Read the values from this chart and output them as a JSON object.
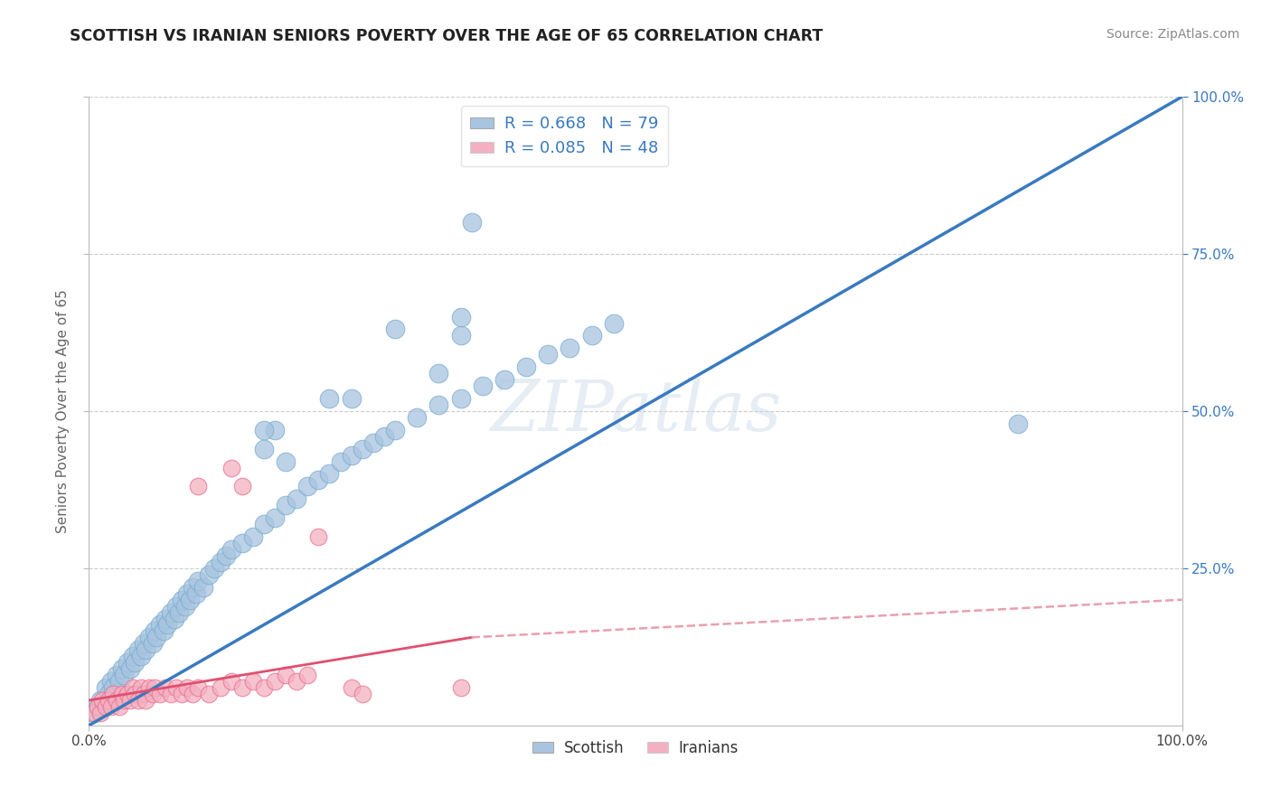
{
  "title": "SCOTTISH VS IRANIAN SENIORS POVERTY OVER THE AGE OF 65 CORRELATION CHART",
  "source": "Source: ZipAtlas.com",
  "ylabel": "Seniors Poverty Over the Age of 65",
  "xlim": [
    0.0,
    1.0
  ],
  "ylim": [
    0.0,
    1.0
  ],
  "watermark": "ZIPatlas",
  "scottish_line_color": "#3a7abf",
  "iranian_line_color": "#e05070",
  "iranian_line_dash_color": "#e8a0b0",
  "scatter_scottish_color": "#a8c4e0",
  "scatter_scottish_edge": "#7aaed0",
  "scatter_iranian_color": "#f4b0c0",
  "scatter_iranian_edge": "#e87090",
  "background_color": "#ffffff",
  "grid_color": "#cccccc",
  "scottish_scatter": [
    [
      0.005,
      0.02
    ],
    [
      0.008,
      0.03
    ],
    [
      0.01,
      0.04
    ],
    [
      0.012,
      0.03
    ],
    [
      0.015,
      0.06
    ],
    [
      0.018,
      0.05
    ],
    [
      0.02,
      0.07
    ],
    [
      0.022,
      0.06
    ],
    [
      0.025,
      0.08
    ],
    [
      0.028,
      0.07
    ],
    [
      0.03,
      0.09
    ],
    [
      0.032,
      0.08
    ],
    [
      0.035,
      0.1
    ],
    [
      0.038,
      0.09
    ],
    [
      0.04,
      0.11
    ],
    [
      0.042,
      0.1
    ],
    [
      0.045,
      0.12
    ],
    [
      0.048,
      0.11
    ],
    [
      0.05,
      0.13
    ],
    [
      0.052,
      0.12
    ],
    [
      0.055,
      0.14
    ],
    [
      0.058,
      0.13
    ],
    [
      0.06,
      0.15
    ],
    [
      0.062,
      0.14
    ],
    [
      0.065,
      0.16
    ],
    [
      0.068,
      0.15
    ],
    [
      0.07,
      0.17
    ],
    [
      0.072,
      0.16
    ],
    [
      0.075,
      0.18
    ],
    [
      0.078,
      0.17
    ],
    [
      0.08,
      0.19
    ],
    [
      0.082,
      0.18
    ],
    [
      0.085,
      0.2
    ],
    [
      0.088,
      0.19
    ],
    [
      0.09,
      0.21
    ],
    [
      0.092,
      0.2
    ],
    [
      0.095,
      0.22
    ],
    [
      0.098,
      0.21
    ],
    [
      0.1,
      0.23
    ],
    [
      0.105,
      0.22
    ],
    [
      0.11,
      0.24
    ],
    [
      0.115,
      0.25
    ],
    [
      0.12,
      0.26
    ],
    [
      0.125,
      0.27
    ],
    [
      0.13,
      0.28
    ],
    [
      0.14,
      0.29
    ],
    [
      0.15,
      0.3
    ],
    [
      0.16,
      0.32
    ],
    [
      0.17,
      0.33
    ],
    [
      0.18,
      0.35
    ],
    [
      0.19,
      0.36
    ],
    [
      0.2,
      0.38
    ],
    [
      0.21,
      0.39
    ],
    [
      0.22,
      0.4
    ],
    [
      0.23,
      0.42
    ],
    [
      0.24,
      0.43
    ],
    [
      0.25,
      0.44
    ],
    [
      0.26,
      0.45
    ],
    [
      0.27,
      0.46
    ],
    [
      0.28,
      0.47
    ],
    [
      0.3,
      0.49
    ],
    [
      0.32,
      0.51
    ],
    [
      0.34,
      0.52
    ],
    [
      0.36,
      0.54
    ],
    [
      0.38,
      0.55
    ],
    [
      0.4,
      0.57
    ],
    [
      0.42,
      0.59
    ],
    [
      0.44,
      0.6
    ],
    [
      0.46,
      0.62
    ],
    [
      0.48,
      0.64
    ],
    [
      0.32,
      0.56
    ],
    [
      0.34,
      0.62
    ],
    [
      0.28,
      0.63
    ],
    [
      0.85,
      0.48
    ],
    [
      0.35,
      0.8
    ],
    [
      0.34,
      0.65
    ],
    [
      0.17,
      0.47
    ],
    [
      0.18,
      0.42
    ],
    [
      0.22,
      0.52
    ],
    [
      0.24,
      0.52
    ],
    [
      0.16,
      0.44
    ],
    [
      0.16,
      0.47
    ]
  ],
  "iranian_scatter": [
    [
      0.005,
      0.02
    ],
    [
      0.008,
      0.03
    ],
    [
      0.01,
      0.02
    ],
    [
      0.012,
      0.04
    ],
    [
      0.015,
      0.03
    ],
    [
      0.018,
      0.04
    ],
    [
      0.02,
      0.03
    ],
    [
      0.022,
      0.05
    ],
    [
      0.025,
      0.04
    ],
    [
      0.028,
      0.03
    ],
    [
      0.03,
      0.05
    ],
    [
      0.032,
      0.04
    ],
    [
      0.035,
      0.05
    ],
    [
      0.038,
      0.04
    ],
    [
      0.04,
      0.06
    ],
    [
      0.042,
      0.05
    ],
    [
      0.045,
      0.04
    ],
    [
      0.048,
      0.06
    ],
    [
      0.05,
      0.05
    ],
    [
      0.052,
      0.04
    ],
    [
      0.055,
      0.06
    ],
    [
      0.058,
      0.05
    ],
    [
      0.06,
      0.06
    ],
    [
      0.065,
      0.05
    ],
    [
      0.07,
      0.06
    ],
    [
      0.075,
      0.05
    ],
    [
      0.08,
      0.06
    ],
    [
      0.085,
      0.05
    ],
    [
      0.09,
      0.06
    ],
    [
      0.095,
      0.05
    ],
    [
      0.1,
      0.06
    ],
    [
      0.11,
      0.05
    ],
    [
      0.12,
      0.06
    ],
    [
      0.13,
      0.07
    ],
    [
      0.14,
      0.06
    ],
    [
      0.15,
      0.07
    ],
    [
      0.16,
      0.06
    ],
    [
      0.17,
      0.07
    ],
    [
      0.18,
      0.08
    ],
    [
      0.19,
      0.07
    ],
    [
      0.2,
      0.08
    ],
    [
      0.21,
      0.3
    ],
    [
      0.1,
      0.38
    ],
    [
      0.14,
      0.38
    ],
    [
      0.13,
      0.41
    ],
    [
      0.24,
      0.06
    ],
    [
      0.25,
      0.05
    ],
    [
      0.34,
      0.06
    ]
  ],
  "scottish_reg": [
    0.0,
    0.0,
    1.0,
    1.0
  ],
  "iranian_reg_solid": [
    0.0,
    0.04,
    0.35,
    0.14
  ],
  "iranian_reg_dash": [
    0.35,
    0.14,
    1.0,
    0.2
  ]
}
